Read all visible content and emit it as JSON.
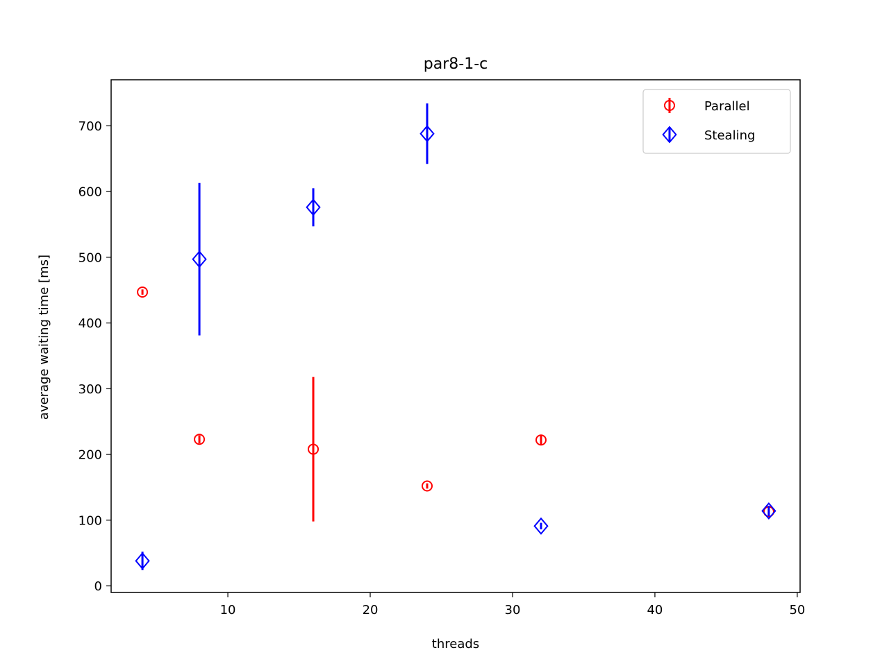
{
  "chart_data": {
    "type": "scatter",
    "title": "par8-1-c",
    "xlabel": "threads",
    "ylabel": "average waiting time [ms]",
    "xlim": [
      1.8,
      50.2
    ],
    "ylim": [
      -10,
      770
    ],
    "xticks": [
      10,
      20,
      30,
      40,
      50
    ],
    "yticks": [
      0,
      100,
      200,
      300,
      400,
      500,
      600,
      700
    ],
    "grid": false,
    "legend_position": "top-right",
    "series": [
      {
        "name": "Parallel",
        "color": "#ff0000",
        "marker": "circle",
        "points": [
          {
            "x": 4,
            "y": 447,
            "err": 4
          },
          {
            "x": 8,
            "y": 223,
            "err": 6
          },
          {
            "x": 16,
            "y": 208,
            "err": 110
          },
          {
            "x": 24,
            "y": 152,
            "err": 4
          },
          {
            "x": 32,
            "y": 222,
            "err": 7
          },
          {
            "x": 48,
            "y": 113,
            "err": 8
          }
        ]
      },
      {
        "name": "Stealing",
        "color": "#0000ff",
        "marker": "diamond",
        "points": [
          {
            "x": 4,
            "y": 38,
            "err": 14
          },
          {
            "x": 8,
            "y": 497,
            "err": 116
          },
          {
            "x": 16,
            "y": 576,
            "err": 29
          },
          {
            "x": 24,
            "y": 688,
            "err": 46
          },
          {
            "x": 32,
            "y": 91,
            "err": 5
          },
          {
            "x": 48,
            "y": 114,
            "err": 8
          }
        ]
      }
    ]
  }
}
